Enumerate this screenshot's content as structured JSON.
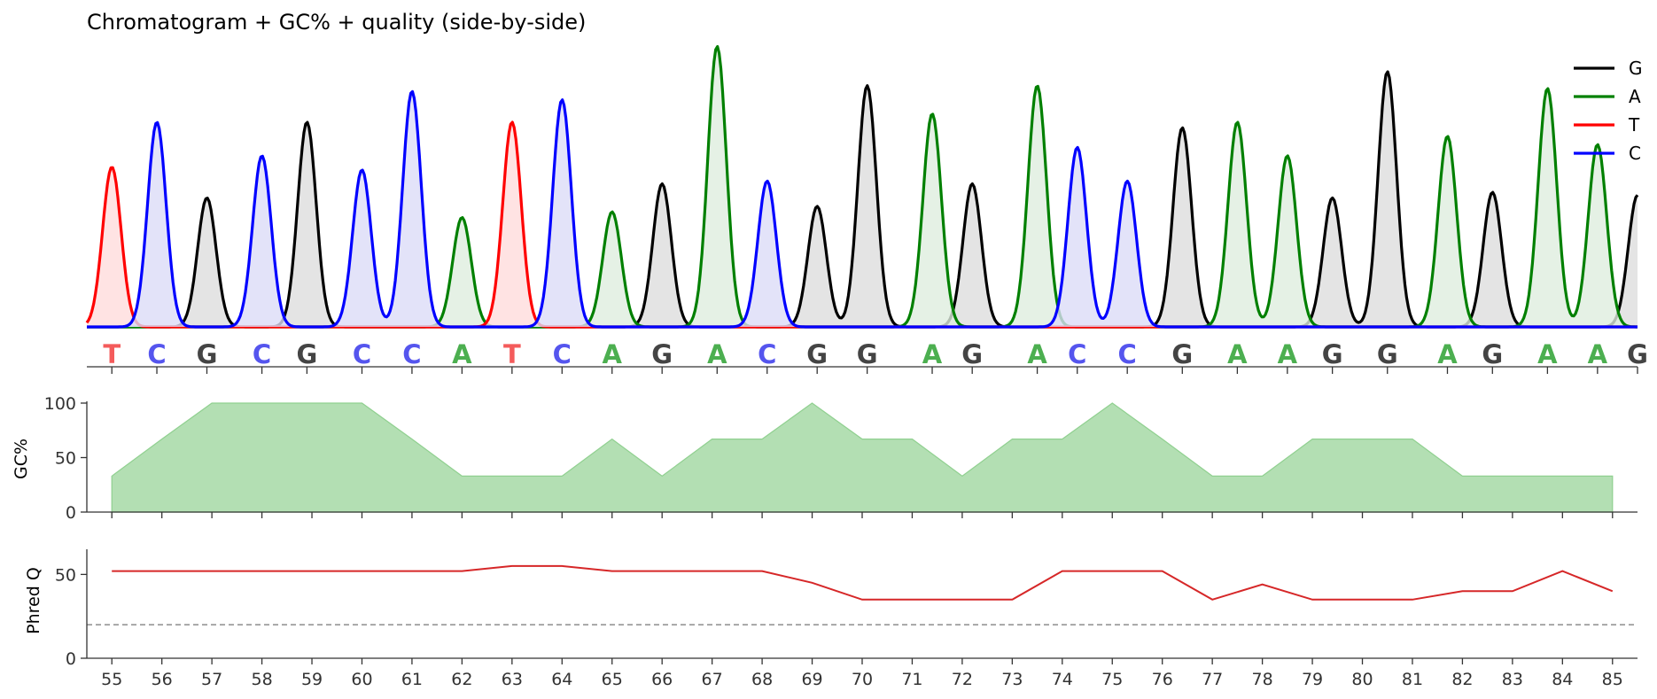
{
  "chart_data": [
    {
      "type": "line",
      "title": "Chromatogram + GC% + quality (side-by-side)",
      "xlabel": "",
      "ylabel": "",
      "legend": {
        "placement": "top-right",
        "entries": [
          {
            "name": "G",
            "color": "#000000"
          },
          {
            "name": "A",
            "color": "#008000"
          },
          {
            "name": "T",
            "color": "#ff0000"
          },
          {
            "name": "C",
            "color": "#0000ff"
          }
        ]
      },
      "base_colors": {
        "G": "#444444",
        "A": "#4caf50",
        "T": "#f45b5b",
        "C": "#5555ee"
      },
      "fill_colors": {
        "G": "#dddddd",
        "A": "#deeede",
        "T": "#ffdcdc",
        "C": "#dcdcf8"
      },
      "line_colors": {
        "G": "#000000",
        "A": "#008000",
        "T": "#ff0000",
        "C": "#0000ff"
      },
      "positions": [
        55.0,
        55.9,
        56.9,
        58.0,
        58.9,
        60.0,
        61.0,
        62.0,
        63.0,
        64.0,
        65.0,
        66.0,
        67.1,
        68.1,
        69.1,
        70.1,
        71.4,
        72.2,
        73.5,
        74.3,
        75.3,
        76.4,
        77.5,
        78.5,
        79.4,
        80.5,
        81.7,
        82.6,
        83.7,
        84.7,
        85.5
      ],
      "bases": [
        "T",
        "C",
        "G",
        "C",
        "G",
        "C",
        "C",
        "A",
        "T",
        "C",
        "A",
        "G",
        "A",
        "C",
        "G",
        "G",
        "A",
        "G",
        "A",
        "C",
        "C",
        "G",
        "A",
        "A",
        "G",
        "G",
        "A",
        "G",
        "A",
        "A",
        "G"
      ],
      "peak_heights": [
        0.57,
        0.73,
        0.46,
        0.61,
        0.73,
        0.56,
        0.84,
        0.39,
        0.73,
        0.81,
        0.41,
        0.51,
        1.0,
        0.52,
        0.43,
        0.86,
        0.76,
        0.51,
        0.86,
        0.64,
        0.52,
        0.71,
        0.73,
        0.61,
        0.46,
        0.91,
        0.68,
        0.48,
        0.85,
        0.65,
        0.47
      ],
      "ylim": [
        0,
        1.02
      ]
    },
    {
      "type": "area",
      "ylabel": "GC%",
      "x": [
        55,
        56,
        57,
        58,
        59,
        60,
        61,
        62,
        63,
        64,
        65,
        66,
        67,
        68,
        69,
        70,
        71,
        72,
        73,
        74,
        75,
        76,
        77,
        78,
        79,
        80,
        81,
        82,
        83,
        84,
        85
      ],
      "values": [
        33,
        67,
        100,
        100,
        100,
        100,
        67,
        33,
        33,
        33,
        67,
        33,
        67,
        67,
        100,
        67,
        67,
        33,
        67,
        67,
        100,
        67,
        33,
        33,
        67,
        67,
        67,
        33,
        33,
        33,
        33
      ],
      "ylim": [
        0,
        100
      ],
      "yticks": [
        "0",
        "50",
        "100"
      ],
      "color": "#b3dfb3"
    },
    {
      "type": "line",
      "ylabel": "Phred Q",
      "xlabel": "",
      "x": [
        55,
        56,
        57,
        58,
        59,
        60,
        61,
        62,
        63,
        64,
        65,
        66,
        67,
        68,
        69,
        70,
        71,
        72,
        73,
        74,
        75,
        76,
        77,
        78,
        79,
        80,
        81,
        82,
        83,
        84,
        85
      ],
      "values": [
        52,
        52,
        52,
        52,
        52,
        52,
        52,
        52,
        55,
        55,
        52,
        52,
        52,
        52,
        45,
        35,
        35,
        35,
        35,
        52,
        52,
        52,
        35,
        44,
        35,
        35,
        35,
        40,
        40,
        52,
        40
      ],
      "threshold": 20,
      "ylim": [
        0,
        65
      ],
      "yticks": [
        "0",
        "50"
      ],
      "xticks": [
        "55",
        "56",
        "57",
        "58",
        "59",
        "60",
        "61",
        "62",
        "63",
        "64",
        "65",
        "66",
        "67",
        "68",
        "69",
        "70",
        "71",
        "72",
        "73",
        "74",
        "75",
        "76",
        "77",
        "78",
        "79",
        "80",
        "81",
        "82",
        "83",
        "84",
        "85"
      ],
      "color": "#d62728"
    }
  ]
}
